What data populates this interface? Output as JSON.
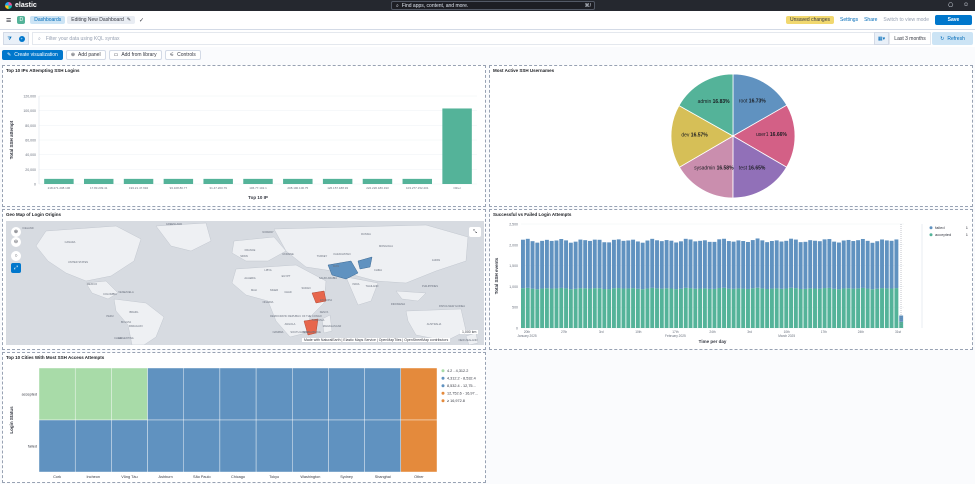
{
  "topbar": {
    "brand": "elastic",
    "search_placeholder": "Find apps, content, and more.",
    "search_shortcut": "⌘/"
  },
  "navbar": {
    "space_initial": "D",
    "breadcrumbs": [
      "Dashboards",
      "Editing New Dashboard"
    ],
    "unsaved_badge": "Unsaved changes",
    "settings": "Settings",
    "share": "Share",
    "switch_view": "Switch to view mode",
    "save": "Save"
  },
  "querybar": {
    "placeholder": "Filter your data using KQL syntax",
    "date_range": "Last 3 months",
    "refresh": "Refresh"
  },
  "toolbar": {
    "create_viz": "Create visualization",
    "add_panel": "Add panel",
    "add_library": "Add from library",
    "controls": "Controls"
  },
  "panels": {
    "ips": {
      "title": "Top 10 IPs Attempting SSH Logins"
    },
    "users": {
      "title": "Most Active SSH Usernames"
    },
    "map": {
      "title": "Geo Map of Login Origins",
      "attribution": "Made with NaturalEarth | Elastic Maps Service | OpenMapTiles | OpenStreetMap contributors",
      "scale": "1,000 km"
    },
    "success": {
      "title": "Successful vs Failed Login Attempts"
    },
    "cities": {
      "title": "Top 10 Cities With Most SSH Access Attempts"
    }
  },
  "chart_data": [
    {
      "type": "bar",
      "title": "Top 10 IPs Attempting SSH Logins",
      "xlabel": "Top 10 IP",
      "ylabel": "Total SSH attempt",
      "ylim": [
        0,
        120000
      ],
      "yticks": [
        "0",
        "20,000",
        "40,000",
        "60,000",
        "80,000",
        "100,000",
        "120,000"
      ],
      "categories": [
        "218.271.208.106",
        "17.83.209.41",
        "193.21.47.692",
        "93.108.80.77",
        "31.47.200.79",
        "106.77.102.1",
        "208.190.100.75",
        "126.157.188.93",
        "222.220.180.193",
        "103.277.152.201",
        "Other"
      ],
      "values": [
        7000,
        7000,
        7000,
        7000,
        7000,
        7000,
        7000,
        7000,
        7000,
        7000,
        103000
      ],
      "color": "#54b399"
    },
    {
      "type": "pie",
      "title": "Most Active SSH Usernames",
      "slices": [
        {
          "label": "root",
          "value": 16.73,
          "text": "16.73%",
          "color": "#6092c0"
        },
        {
          "label": "user1",
          "value": 16.66,
          "text": "16.66%",
          "color": "#d36086"
        },
        {
          "label": "test",
          "value": 16.65,
          "text": "16.65%",
          "color": "#9170b8"
        },
        {
          "label": "sysadmin",
          "value": 16.58,
          "text": "16.58%",
          "color": "#ca8eae"
        },
        {
          "label": "dev",
          "value": 16.57,
          "text": "16.57%",
          "color": "#d6bf57"
        },
        {
          "label": "admin",
          "value": 16.83,
          "text": "16.83%",
          "color": "#54b399"
        }
      ]
    },
    {
      "type": "bar",
      "title": "Successful vs Failed Login Attempts",
      "xlabel": "Time per day",
      "ylabel": "Total SSH events",
      "ylim": [
        0,
        2500
      ],
      "yticks": [
        "0",
        "500",
        "1,000",
        "1,500",
        "2,000",
        "2,500"
      ],
      "xticks": [
        "20th\nJanuary 2025",
        "27th",
        "3rd",
        "10th",
        "17th\nFebruary 2025",
        "24th",
        "3rd",
        "10th\nMarch 2025",
        "17th",
        "24th",
        "31st"
      ],
      "series": [
        {
          "name": "failed",
          "color": "#6092c0",
          "total": 1
        },
        {
          "name": "accepted",
          "color": "#54b399",
          "total": 1
        }
      ],
      "stack_failed": 1150,
      "stack_accepted": 950
    },
    {
      "type": "heatmap",
      "title": "Top 10 Cities With Most SSH Access Attempts",
      "xlabel": "",
      "ylabel": "Login Status",
      "rows": [
        "accepted",
        "failed"
      ],
      "columns": [
        "Cork",
        "Incheon",
        "Vũng Tàu",
        "Ashburn",
        "São Paulo",
        "Chicago",
        "Tokyo",
        "Washington",
        "Sydney",
        "Shanghai",
        "Other"
      ],
      "legend": [
        {
          "label": "4.2 - 4,312.2",
          "color": "#a8dba8"
        },
        {
          "label": "4,312.2 - 8,532.4",
          "color": "#6092c0"
        },
        {
          "label": "8,532.4 - 12,75...",
          "color": "#6092c0"
        },
        {
          "label": "12,752.6 - 16,97...",
          "color": "#e48a3c"
        },
        {
          "label": "≥ 16,972.8",
          "color": "#e48a3c"
        }
      ],
      "cells": {
        "accepted": [
          "#a8dba8",
          "#a8dba8",
          "#a8dba8",
          "#6092c0",
          "#6092c0",
          "#6092c0",
          "#6092c0",
          "#6092c0",
          "#6092c0",
          "#6092c0",
          "#e48a3c"
        ],
        "failed": [
          "#6092c0",
          "#6092c0",
          "#6092c0",
          "#6092c0",
          "#6092c0",
          "#6092c0",
          "#6092c0",
          "#6092c0",
          "#6092c0",
          "#6092c0",
          "#e48a3c"
        ]
      }
    }
  ],
  "map_labels": [
    "ICELAND",
    "NORWAY",
    "CANADA",
    "UNITED STATES",
    "MEXICO",
    "VENEZUELA",
    "COLOMBIA",
    "PERU",
    "BRAZIL",
    "BOLIVIA",
    "PARAGUAY",
    "CHILE",
    "ARGENTINA",
    "GREENLAND",
    "RUSSIA",
    "KAZAKHSTAN",
    "CHINA",
    "MONGOLIA",
    "INDIA",
    "IRAN",
    "SAUDI ARABIA",
    "EGYPT",
    "LIBYA",
    "ALGERIA",
    "MALI",
    "NIGER",
    "CHAD",
    "SUDAN",
    "NIGERIA",
    "ETHIOPIA",
    "KENYA",
    "TANZANIA",
    "DEMOCRATIC REPUBLIC OF THE CONGO",
    "ANGOLA",
    "NAMIBIA",
    "SOUTH AFRICA",
    "MOZAMBIQUE",
    "MADAGASCAR",
    "AUSTRALIA",
    "INDONESIA",
    "PHILIPPINES",
    "PAPUA NEW GUINEA",
    "THAILAND",
    "SPAIN",
    "FRANCE",
    "UKRAINE",
    "TURKEY",
    "JAPAN",
    "NEW ZEALAND"
  ]
}
